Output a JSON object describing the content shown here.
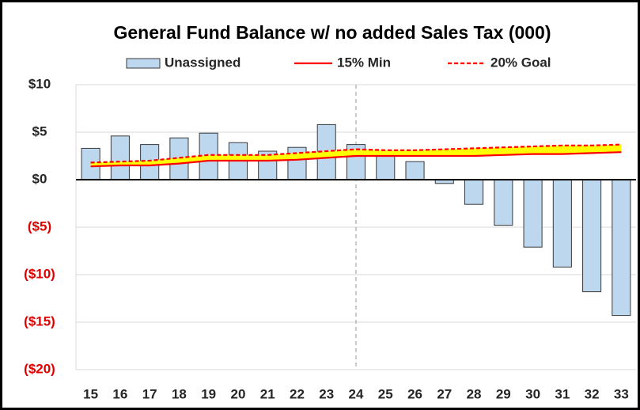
{
  "chart_data": {
    "type": "bar",
    "title": "General Fund Balance w/ no added Sales Tax (000)",
    "categories": [
      "15",
      "16",
      "17",
      "18",
      "19",
      "20",
      "21",
      "22",
      "23",
      "24",
      "25",
      "26",
      "27",
      "28",
      "29",
      "30",
      "31",
      "32",
      "33"
    ],
    "series": [
      {
        "name": "Unassigned",
        "type": "bar",
        "color": "#bdd7ee",
        "values": [
          3.3,
          4.6,
          3.7,
          4.4,
          4.9,
          3.9,
          3.0,
          3.4,
          5.8,
          3.7,
          2.9,
          1.9,
          -0.4,
          -2.6,
          -4.8,
          -7.1,
          -9.2,
          -11.8,
          -14.3
        ]
      },
      {
        "name": "15% Min",
        "type": "line",
        "color": "#ff0000",
        "values": [
          1.4,
          1.5,
          1.5,
          1.7,
          2.0,
          2.0,
          2.0,
          2.1,
          2.3,
          2.5,
          2.5,
          2.5,
          2.5,
          2.5,
          2.6,
          2.7,
          2.7,
          2.8,
          2.9
        ]
      },
      {
        "name": "20% Goal",
        "type": "line",
        "dashed": true,
        "color": "#ff0000",
        "values": [
          1.8,
          1.9,
          2.0,
          2.3,
          2.6,
          2.6,
          2.6,
          2.8,
          3.0,
          3.2,
          3.1,
          3.1,
          3.2,
          3.3,
          3.4,
          3.5,
          3.6,
          3.6,
          3.7
        ]
      }
    ],
    "band_color": "#ffff00",
    "reference_line_category": "24",
    "negative_label_color": "#e00000",
    "ylim": [
      -20,
      10
    ],
    "yticks": [
      {
        "value": 10,
        "label": "$10"
      },
      {
        "value": 5,
        "label": "$5"
      },
      {
        "value": 0,
        "label": "$0"
      },
      {
        "value": -5,
        "label": "($5)"
      },
      {
        "value": -10,
        "label": "($10)"
      },
      {
        "value": -15,
        "label": "($15)"
      },
      {
        "value": -20,
        "label": "($20)"
      }
    ],
    "grid": true,
    "legend": "top"
  }
}
